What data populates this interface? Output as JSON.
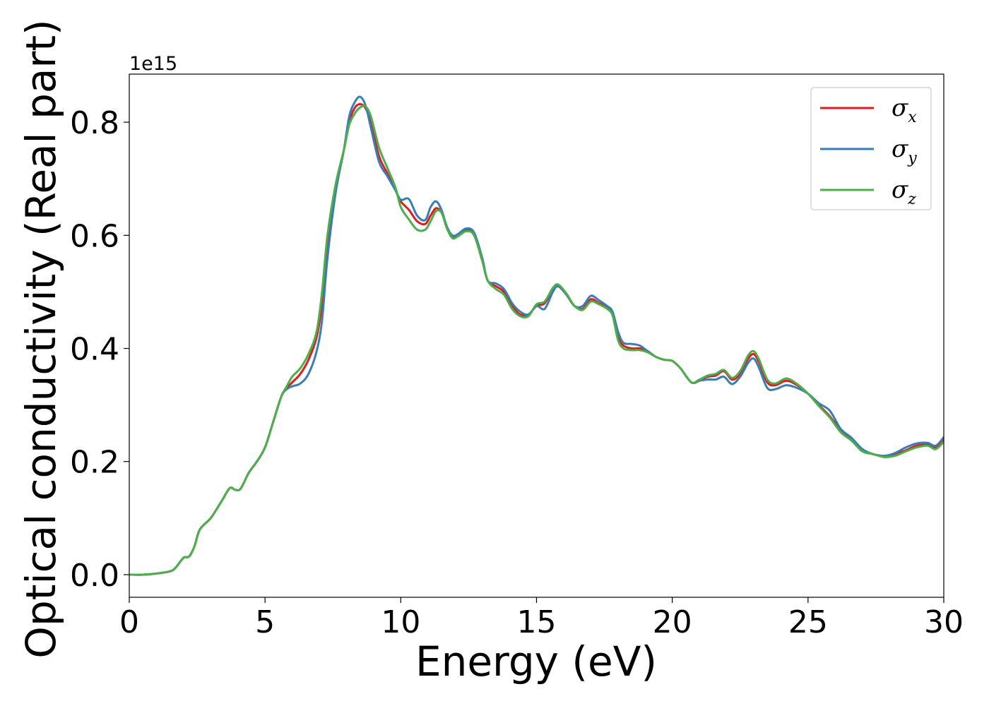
{
  "chart_data": {
    "type": "line",
    "title": "",
    "xlabel": "Energy (eV)",
    "ylabel": "Optical conductivity (Real part)",
    "y_offset_label": "1e15",
    "xlim": [
      0,
      30
    ],
    "ylim": [
      -0.04,
      0.885
    ],
    "x_ticks": [
      0,
      5,
      10,
      15,
      20,
      25,
      30
    ],
    "x_tick_labels": [
      "0",
      "5",
      "10",
      "15",
      "20",
      "25",
      "30"
    ],
    "y_ticks": [
      0.0,
      0.2,
      0.4,
      0.6,
      0.8
    ],
    "y_tick_labels": [
      "0.0",
      "0.2",
      "0.4",
      "0.6",
      "0.8"
    ],
    "grid": false,
    "legend_position": "top-right",
    "series": [
      {
        "name": "σx",
        "base": "σ",
        "sub": "x",
        "color": "#e41a1c",
        "points": [
          [
            0,
            0
          ],
          [
            0.5,
            0
          ],
          [
            1,
            0.002
          ],
          [
            1.5,
            0.006
          ],
          [
            1.7,
            0.012
          ],
          [
            2,
            0.03
          ],
          [
            2.2,
            0.032
          ],
          [
            2.4,
            0.05
          ],
          [
            2.6,
            0.08
          ],
          [
            3,
            0.1
          ],
          [
            3.4,
            0.13
          ],
          [
            3.7,
            0.153
          ],
          [
            3.9,
            0.15
          ],
          [
            4.1,
            0.152
          ],
          [
            4.4,
            0.18
          ],
          [
            4.7,
            0.2
          ],
          [
            5,
            0.225
          ],
          [
            5.3,
            0.27
          ],
          [
            5.6,
            0.315
          ],
          [
            5.8,
            0.33
          ],
          [
            6,
            0.34
          ],
          [
            6.3,
            0.355
          ],
          [
            6.6,
            0.38
          ],
          [
            6.9,
            0.42
          ],
          [
            7.1,
            0.48
          ],
          [
            7.3,
            0.58
          ],
          [
            7.6,
            0.68
          ],
          [
            7.9,
            0.75
          ],
          [
            8.1,
            0.8
          ],
          [
            8.3,
            0.825
          ],
          [
            8.5,
            0.832
          ],
          [
            8.7,
            0.825
          ],
          [
            8.9,
            0.8
          ],
          [
            9.2,
            0.74
          ],
          [
            9.5,
            0.71
          ],
          [
            9.8,
            0.68
          ],
          [
            10,
            0.66
          ],
          [
            10.3,
            0.645
          ],
          [
            10.6,
            0.625
          ],
          [
            10.9,
            0.62
          ],
          [
            11.1,
            0.635
          ],
          [
            11.3,
            0.648
          ],
          [
            11.5,
            0.64
          ],
          [
            11.7,
            0.615
          ],
          [
            11.9,
            0.598
          ],
          [
            12.1,
            0.6
          ],
          [
            12.4,
            0.61
          ],
          [
            12.7,
            0.6
          ],
          [
            13,
            0.555
          ],
          [
            13.2,
            0.52
          ],
          [
            13.5,
            0.51
          ],
          [
            13.8,
            0.5
          ],
          [
            14.1,
            0.475
          ],
          [
            14.4,
            0.46
          ],
          [
            14.7,
            0.46
          ],
          [
            15,
            0.475
          ],
          [
            15.3,
            0.48
          ],
          [
            15.6,
            0.505
          ],
          [
            15.8,
            0.51
          ],
          [
            16.1,
            0.495
          ],
          [
            16.4,
            0.475
          ],
          [
            16.7,
            0.47
          ],
          [
            17,
            0.487
          ],
          [
            17.3,
            0.48
          ],
          [
            17.6,
            0.472
          ],
          [
            17.8,
            0.46
          ],
          [
            18,
            0.42
          ],
          [
            18.2,
            0.405
          ],
          [
            18.5,
            0.4
          ],
          [
            18.8,
            0.4
          ],
          [
            19.1,
            0.395
          ],
          [
            19.4,
            0.385
          ],
          [
            19.7,
            0.38
          ],
          [
            20,
            0.378
          ],
          [
            20.3,
            0.365
          ],
          [
            20.7,
            0.34
          ],
          [
            21,
            0.343
          ],
          [
            21.3,
            0.35
          ],
          [
            21.6,
            0.352
          ],
          [
            21.9,
            0.36
          ],
          [
            22.2,
            0.345
          ],
          [
            22.5,
            0.355
          ],
          [
            22.8,
            0.382
          ],
          [
            23,
            0.39
          ],
          [
            23.2,
            0.375
          ],
          [
            23.5,
            0.34
          ],
          [
            23.8,
            0.335
          ],
          [
            24.2,
            0.343
          ],
          [
            24.6,
            0.335
          ],
          [
            25,
            0.32
          ],
          [
            25.4,
            0.3
          ],
          [
            25.8,
            0.28
          ],
          [
            26.2,
            0.255
          ],
          [
            26.6,
            0.238
          ],
          [
            27,
            0.22
          ],
          [
            27.4,
            0.213
          ],
          [
            27.8,
            0.21
          ],
          [
            28.2,
            0.213
          ],
          [
            28.6,
            0.22
          ],
          [
            29,
            0.228
          ],
          [
            29.4,
            0.23
          ],
          [
            29.7,
            0.225
          ],
          [
            30,
            0.238
          ]
        ]
      },
      {
        "name": "σy",
        "base": "σ",
        "sub": "y",
        "color": "#377eb8",
        "points": [
          [
            0,
            0
          ],
          [
            0.5,
            0
          ],
          [
            1,
            0.002
          ],
          [
            1.5,
            0.006
          ],
          [
            1.7,
            0.012
          ],
          [
            2,
            0.03
          ],
          [
            2.2,
            0.032
          ],
          [
            2.4,
            0.05
          ],
          [
            2.6,
            0.08
          ],
          [
            3,
            0.1
          ],
          [
            3.4,
            0.13
          ],
          [
            3.7,
            0.153
          ],
          [
            3.9,
            0.15
          ],
          [
            4.1,
            0.152
          ],
          [
            4.4,
            0.18
          ],
          [
            4.7,
            0.2
          ],
          [
            5,
            0.225
          ],
          [
            5.3,
            0.27
          ],
          [
            5.6,
            0.315
          ],
          [
            5.8,
            0.328
          ],
          [
            6,
            0.333
          ],
          [
            6.3,
            0.338
          ],
          [
            6.6,
            0.355
          ],
          [
            6.9,
            0.395
          ],
          [
            7.1,
            0.45
          ],
          [
            7.3,
            0.56
          ],
          [
            7.6,
            0.675
          ],
          [
            7.9,
            0.75
          ],
          [
            8.1,
            0.81
          ],
          [
            8.3,
            0.835
          ],
          [
            8.5,
            0.845
          ],
          [
            8.7,
            0.83
          ],
          [
            8.9,
            0.79
          ],
          [
            9.2,
            0.73
          ],
          [
            9.5,
            0.705
          ],
          [
            9.8,
            0.68
          ],
          [
            10,
            0.663
          ],
          [
            10.3,
            0.664
          ],
          [
            10.6,
            0.635
          ],
          [
            10.9,
            0.627
          ],
          [
            11.1,
            0.65
          ],
          [
            11.3,
            0.66
          ],
          [
            11.5,
            0.645
          ],
          [
            11.7,
            0.615
          ],
          [
            11.9,
            0.6
          ],
          [
            12.1,
            0.602
          ],
          [
            12.4,
            0.612
          ],
          [
            12.7,
            0.605
          ],
          [
            13,
            0.56
          ],
          [
            13.2,
            0.52
          ],
          [
            13.5,
            0.515
          ],
          [
            13.8,
            0.505
          ],
          [
            14.1,
            0.48
          ],
          [
            14.4,
            0.465
          ],
          [
            14.7,
            0.46
          ],
          [
            15,
            0.475
          ],
          [
            15.3,
            0.47
          ],
          [
            15.6,
            0.5
          ],
          [
            15.8,
            0.51
          ],
          [
            16.1,
            0.495
          ],
          [
            16.4,
            0.475
          ],
          [
            16.7,
            0.475
          ],
          [
            17,
            0.493
          ],
          [
            17.3,
            0.485
          ],
          [
            17.6,
            0.475
          ],
          [
            17.8,
            0.465
          ],
          [
            18,
            0.43
          ],
          [
            18.2,
            0.41
          ],
          [
            18.5,
            0.408
          ],
          [
            18.8,
            0.405
          ],
          [
            19.1,
            0.395
          ],
          [
            19.4,
            0.385
          ],
          [
            19.7,
            0.38
          ],
          [
            20,
            0.378
          ],
          [
            20.3,
            0.365
          ],
          [
            20.7,
            0.34
          ],
          [
            21,
            0.343
          ],
          [
            21.3,
            0.345
          ],
          [
            21.6,
            0.345
          ],
          [
            21.9,
            0.35
          ],
          [
            22.2,
            0.337
          ],
          [
            22.5,
            0.35
          ],
          [
            22.8,
            0.375
          ],
          [
            23,
            0.382
          ],
          [
            23.2,
            0.365
          ],
          [
            23.5,
            0.33
          ],
          [
            23.8,
            0.328
          ],
          [
            24.2,
            0.335
          ],
          [
            24.6,
            0.33
          ],
          [
            25,
            0.32
          ],
          [
            25.4,
            0.303
          ],
          [
            25.8,
            0.29
          ],
          [
            26.2,
            0.258
          ],
          [
            26.6,
            0.242
          ],
          [
            27,
            0.222
          ],
          [
            27.4,
            0.213
          ],
          [
            27.8,
            0.21
          ],
          [
            28.2,
            0.215
          ],
          [
            28.6,
            0.225
          ],
          [
            29,
            0.232
          ],
          [
            29.4,
            0.233
          ],
          [
            29.7,
            0.228
          ],
          [
            30,
            0.243
          ]
        ]
      },
      {
        "name": "σz",
        "base": "σ",
        "sub": "z",
        "color": "#4daf4a",
        "points": [
          [
            0,
            0
          ],
          [
            0.5,
            0
          ],
          [
            1,
            0.002
          ],
          [
            1.5,
            0.006
          ],
          [
            1.7,
            0.012
          ],
          [
            2,
            0.03
          ],
          [
            2.2,
            0.032
          ],
          [
            2.4,
            0.05
          ],
          [
            2.6,
            0.08
          ],
          [
            3,
            0.1
          ],
          [
            3.4,
            0.13
          ],
          [
            3.7,
            0.153
          ],
          [
            3.9,
            0.15
          ],
          [
            4.1,
            0.152
          ],
          [
            4.4,
            0.18
          ],
          [
            4.7,
            0.2
          ],
          [
            5,
            0.225
          ],
          [
            5.3,
            0.27
          ],
          [
            5.6,
            0.315
          ],
          [
            5.8,
            0.333
          ],
          [
            6,
            0.35
          ],
          [
            6.3,
            0.365
          ],
          [
            6.6,
            0.39
          ],
          [
            6.9,
            0.43
          ],
          [
            7.1,
            0.5
          ],
          [
            7.3,
            0.6
          ],
          [
            7.6,
            0.69
          ],
          [
            7.9,
            0.75
          ],
          [
            8.1,
            0.795
          ],
          [
            8.3,
            0.815
          ],
          [
            8.5,
            0.826
          ],
          [
            8.7,
            0.828
          ],
          [
            8.9,
            0.81
          ],
          [
            9.2,
            0.755
          ],
          [
            9.5,
            0.72
          ],
          [
            9.8,
            0.685
          ],
          [
            10,
            0.65
          ],
          [
            10.3,
            0.628
          ],
          [
            10.6,
            0.61
          ],
          [
            10.9,
            0.61
          ],
          [
            11.1,
            0.625
          ],
          [
            11.3,
            0.643
          ],
          [
            11.5,
            0.64
          ],
          [
            11.7,
            0.612
          ],
          [
            11.9,
            0.595
          ],
          [
            12.1,
            0.598
          ],
          [
            12.4,
            0.607
          ],
          [
            12.7,
            0.6
          ],
          [
            13,
            0.555
          ],
          [
            13.2,
            0.52
          ],
          [
            13.5,
            0.505
          ],
          [
            13.8,
            0.495
          ],
          [
            14.1,
            0.47
          ],
          [
            14.4,
            0.457
          ],
          [
            14.7,
            0.457
          ],
          [
            15,
            0.478
          ],
          [
            15.3,
            0.483
          ],
          [
            15.6,
            0.507
          ],
          [
            15.8,
            0.513
          ],
          [
            16.1,
            0.497
          ],
          [
            16.4,
            0.475
          ],
          [
            16.7,
            0.468
          ],
          [
            17,
            0.483
          ],
          [
            17.3,
            0.478
          ],
          [
            17.6,
            0.47
          ],
          [
            17.8,
            0.458
          ],
          [
            18,
            0.415
          ],
          [
            18.2,
            0.4
          ],
          [
            18.5,
            0.397
          ],
          [
            18.8,
            0.397
          ],
          [
            19.1,
            0.393
          ],
          [
            19.4,
            0.385
          ],
          [
            19.7,
            0.38
          ],
          [
            20,
            0.378
          ],
          [
            20.3,
            0.365
          ],
          [
            20.7,
            0.34
          ],
          [
            21,
            0.345
          ],
          [
            21.3,
            0.352
          ],
          [
            21.6,
            0.355
          ],
          [
            21.9,
            0.362
          ],
          [
            22.2,
            0.348
          ],
          [
            22.5,
            0.36
          ],
          [
            22.8,
            0.388
          ],
          [
            23,
            0.395
          ],
          [
            23.2,
            0.38
          ],
          [
            23.5,
            0.345
          ],
          [
            23.8,
            0.338
          ],
          [
            24.2,
            0.347
          ],
          [
            24.6,
            0.337
          ],
          [
            25,
            0.32
          ],
          [
            25.4,
            0.298
          ],
          [
            25.8,
            0.278
          ],
          [
            26.2,
            0.252
          ],
          [
            26.6,
            0.237
          ],
          [
            27,
            0.218
          ],
          [
            27.4,
            0.213
          ],
          [
            27.8,
            0.208
          ],
          [
            28.2,
            0.21
          ],
          [
            28.6,
            0.218
          ],
          [
            29,
            0.225
          ],
          [
            29.4,
            0.228
          ],
          [
            29.7,
            0.222
          ],
          [
            30,
            0.235
          ]
        ]
      }
    ]
  }
}
